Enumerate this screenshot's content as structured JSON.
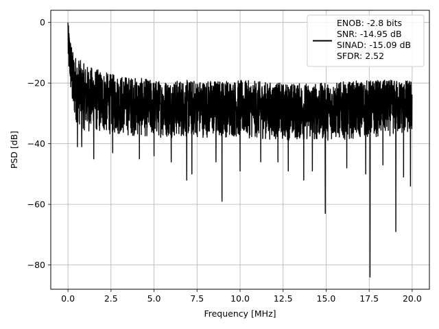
{
  "chart_data": {
    "type": "line",
    "xlabel": "Frequency [MHz]",
    "ylabel": "PSD [dB]",
    "xlim": [
      -1.0,
      21.0
    ],
    "ylim": [
      -88.0,
      4.0
    ],
    "x_ticks": [
      0.0,
      2.5,
      5.0,
      7.5,
      10.0,
      12.5,
      15.0,
      17.5,
      20.0
    ],
    "x_tick_labels": [
      "0.0",
      "2.5",
      "5.0",
      "7.5",
      "10.0",
      "12.5",
      "15.0",
      "17.5",
      "20.0"
    ],
    "y_ticks": [
      0,
      -20,
      -40,
      -60,
      -80
    ],
    "y_tick_labels": [
      "0",
      "−20",
      "−40",
      "−60",
      "−80"
    ],
    "grid": true,
    "legend_position": "top-right",
    "series": [
      {
        "name": "ENOB: -2.8 bits\nSNR: -14.95 dB\nSINAD: -15.09 dB\nSFDR: 2.52",
        "color": "#000000",
        "x_range": [
          0.0,
          20.0
        ],
        "noise_band": [
          {
            "x": 0.0,
            "top": 0.0,
            "bottom": -15
          },
          {
            "x": 0.3,
            "top": -10,
            "bottom": -32
          },
          {
            "x": 1.0,
            "top": -14,
            "bottom": -36
          },
          {
            "x": 2.5,
            "top": -17,
            "bottom": -37
          },
          {
            "x": 5.0,
            "top": -19,
            "bottom": -38
          },
          {
            "x": 7.5,
            "top": -19,
            "bottom": -38
          },
          {
            "x": 10.0,
            "top": -19,
            "bottom": -38
          },
          {
            "x": 12.5,
            "top": -20,
            "bottom": -39
          },
          {
            "x": 15.0,
            "top": -20,
            "bottom": -39
          },
          {
            "x": 17.5,
            "top": -19,
            "bottom": -38
          },
          {
            "x": 20.0,
            "top": -19,
            "bottom": -37
          }
        ],
        "dips": [
          {
            "x": 0.55,
            "y": -41
          },
          {
            "x": 0.8,
            "y": -41
          },
          {
            "x": 1.5,
            "y": -45
          },
          {
            "x": 2.6,
            "y": -43
          },
          {
            "x": 4.15,
            "y": -45
          },
          {
            "x": 5.0,
            "y": -44
          },
          {
            "x": 6.0,
            "y": -46
          },
          {
            "x": 6.9,
            "y": -52
          },
          {
            "x": 7.2,
            "y": -50
          },
          {
            "x": 8.6,
            "y": -46
          },
          {
            "x": 8.95,
            "y": -59
          },
          {
            "x": 10.0,
            "y": -49
          },
          {
            "x": 11.2,
            "y": -46
          },
          {
            "x": 12.2,
            "y": -46
          },
          {
            "x": 12.8,
            "y": -49
          },
          {
            "x": 13.7,
            "y": -52
          },
          {
            "x": 14.2,
            "y": -49
          },
          {
            "x": 14.95,
            "y": -63
          },
          {
            "x": 16.2,
            "y": -48
          },
          {
            "x": 17.3,
            "y": -50
          },
          {
            "x": 17.55,
            "y": -84
          },
          {
            "x": 18.3,
            "y": -47
          },
          {
            "x": 19.05,
            "y": -69
          },
          {
            "x": 19.5,
            "y": -51
          },
          {
            "x": 19.9,
            "y": -54
          }
        ]
      }
    ]
  }
}
